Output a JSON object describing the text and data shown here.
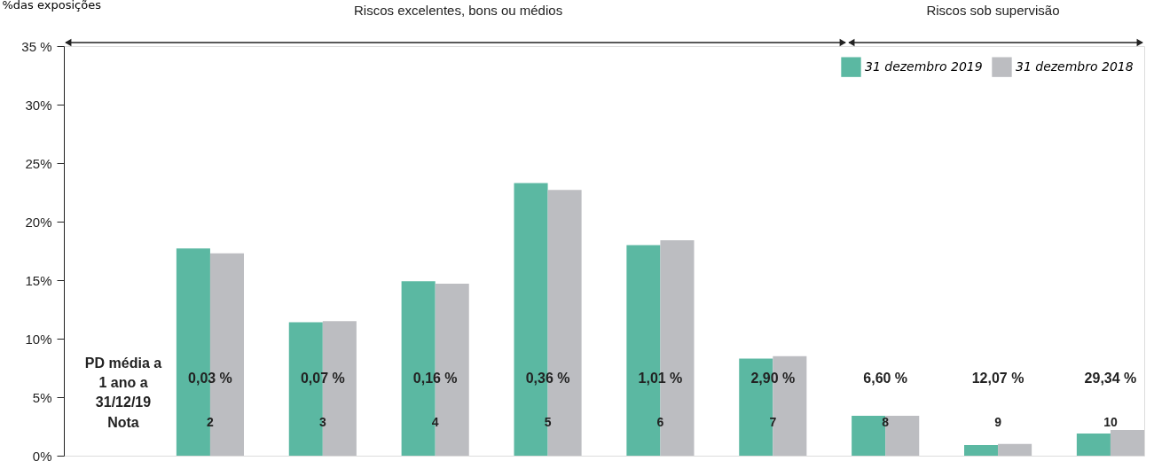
{
  "chart_data": {
    "type": "bar",
    "ylabel": "%das exposições",
    "categories": [
      "2",
      "3",
      "4",
      "5",
      "6",
      "7",
      "8",
      "9",
      "10"
    ],
    "series": [
      {
        "name": "31 dezembro 2019",
        "color": "#5bb8a2",
        "values": [
          17.7,
          11.4,
          14.9,
          23.3,
          18.0,
          8.3,
          3.4,
          0.9,
          1.9
        ]
      },
      {
        "name": "31 dezembro 2018",
        "color": "#bcbdc1",
        "values": [
          17.3,
          11.5,
          14.7,
          22.7,
          18.4,
          8.5,
          3.4,
          1.0,
          2.2
        ]
      }
    ],
    "ylim": [
      0,
      35
    ],
    "yticks": [
      {
        "value": 0,
        "label": "0%"
      },
      {
        "value": 5,
        "label": "5%"
      },
      {
        "value": 10,
        "label": "10%"
      },
      {
        "value": 15,
        "label": "15%"
      },
      {
        "value": 20,
        "label": "20%"
      },
      {
        "value": 25,
        "label": "25%"
      },
      {
        "value": 30,
        "label": "30%"
      },
      {
        "value": 35,
        "label": "35 %"
      }
    ],
    "legend": "top right",
    "grid": false,
    "annotations": [
      "PD média a 1 ano a 31/12/19",
      "Nota",
      "Riscos excelentes, bons ou médios",
      "Riscos sob supervisão",
      "0,03 %",
      "0,07 %",
      "0,16 %",
      "0,36 %",
      "1,01 %",
      "2,90 %",
      "6,60 %",
      "12,07 %",
      "29,34 %"
    ]
  }
}
